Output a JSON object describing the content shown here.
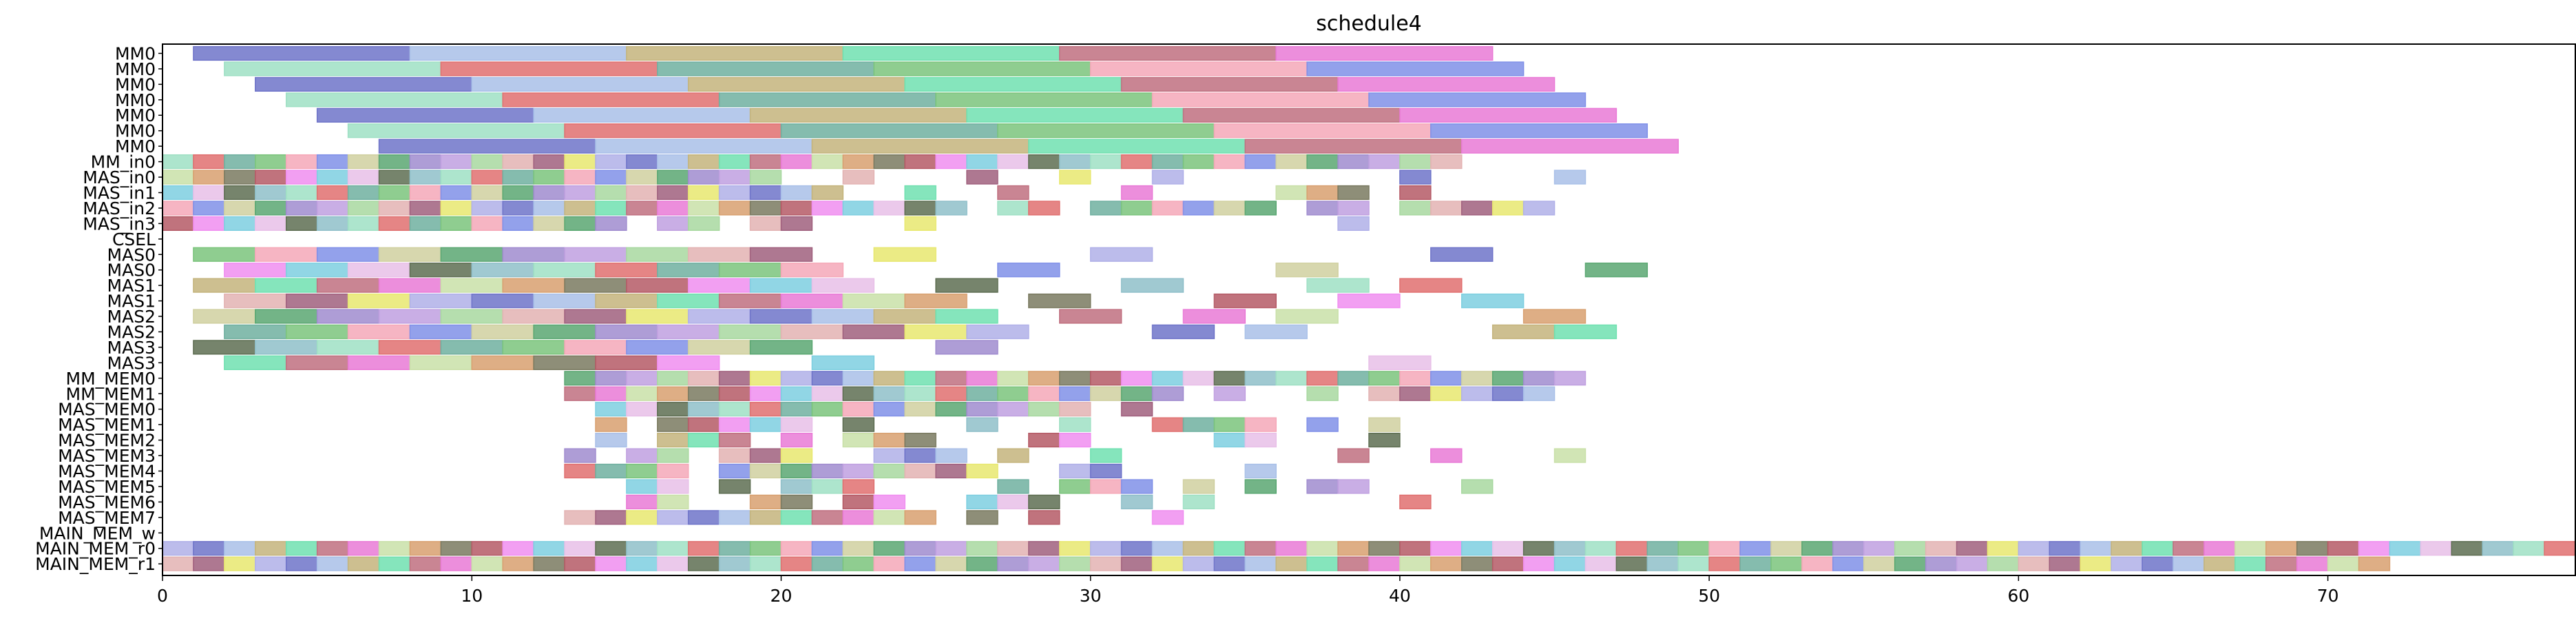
{
  "chart_data": {
    "type": "gantt",
    "title": "schedule4",
    "xlabel": "",
    "ylabel": "",
    "xlim": [
      0,
      78
    ],
    "xticks": [
      0,
      10,
      20,
      30,
      40,
      50,
      60,
      70
    ],
    "rows": [
      "MM0",
      "MM0",
      "MM0",
      "MM0",
      "MM0",
      "MM0",
      "MM0",
      "MM_in0",
      "MAS_in0",
      "MAS_in1",
      "MAS_in2",
      "MAS_in3",
      "CSEL",
      "MAS0",
      "MAS0",
      "MAS1",
      "MAS1",
      "MAS2",
      "MAS2",
      "MAS3",
      "MAS3",
      "MM_MEM0",
      "MM_MEM1",
      "MAS_MEM0",
      "MAS_MEM1",
      "MAS_MEM2",
      "MAS_MEM3",
      "MAS_MEM4",
      "MAS_MEM5",
      "MAS_MEM6",
      "MAS_MEM7",
      "MAIN_MEM_w",
      "MAIN_MEM_r0",
      "MAIN_MEM_r1"
    ],
    "palette": [
      "#6f74c9",
      "#5e6e52",
      "#e3b3b3",
      "#b55a66",
      "#5aa772",
      "#e97ad6",
      "#7bc47c",
      "#a9c0e8",
      "#8fbfc9",
      "#a0607e",
      "#f08ef0",
      "#a08ccf",
      "#c9e0a8",
      "#f5a8b8",
      "#c4b47c",
      "#9fe0c4",
      "#e8e870",
      "#7ecfe0",
      "#c0a0e0",
      "#d8a070",
      "#8090e8",
      "#70e0b0",
      "#e07070",
      "#b0b0e8",
      "#e8c0e8",
      "#a8d8a0",
      "#7a7a60",
      "#d0d0a0",
      "#c07080",
      "#70b0a0"
    ],
    "grid": false,
    "legend": "none"
  }
}
